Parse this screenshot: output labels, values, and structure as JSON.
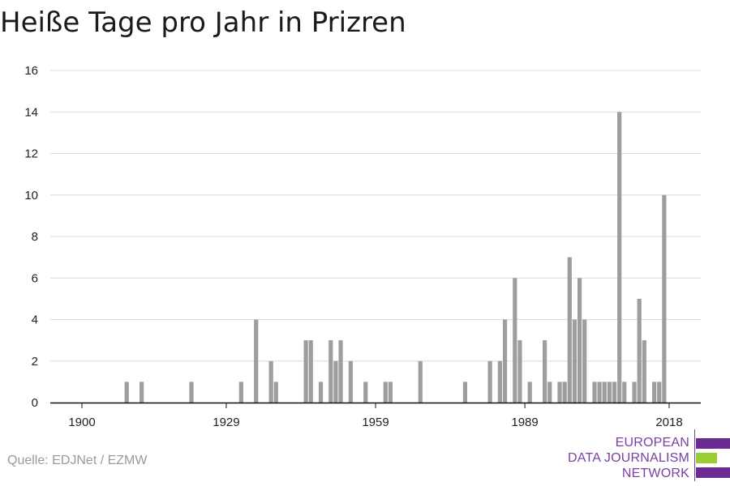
{
  "title": "Heiße Tage pro Jahr in Prizren",
  "source": "Quelle: EDJNet / EZMW",
  "logo": {
    "lines": [
      "EUROPEAN",
      "DATA JOURNALISM",
      "NETWORK"
    ],
    "colors": {
      "text": "#7a3fa3",
      "bar_purple": "#6b2a92",
      "bar_green": "#9acd32"
    }
  },
  "chart_data": {
    "type": "bar",
    "xlabel": "",
    "ylabel": "",
    "ylim": [
      0,
      16
    ],
    "yticks": [
      0,
      2,
      4,
      6,
      8,
      10,
      12,
      14,
      16
    ],
    "xlim": [
      1900,
      2018
    ],
    "xticks": [
      1900,
      1929,
      1959,
      1989,
      2018
    ],
    "grid": true,
    "bar_color": "#9e9e9e",
    "points": [
      {
        "x": 1909,
        "y": 1
      },
      {
        "x": 1912,
        "y": 1
      },
      {
        "x": 1922,
        "y": 1
      },
      {
        "x": 1932,
        "y": 1
      },
      {
        "x": 1935,
        "y": 4
      },
      {
        "x": 1938,
        "y": 2
      },
      {
        "x": 1939,
        "y": 1
      },
      {
        "x": 1945,
        "y": 3
      },
      {
        "x": 1946,
        "y": 3
      },
      {
        "x": 1948,
        "y": 1
      },
      {
        "x": 1950,
        "y": 3
      },
      {
        "x": 1951,
        "y": 2
      },
      {
        "x": 1952,
        "y": 3
      },
      {
        "x": 1954,
        "y": 2
      },
      {
        "x": 1957,
        "y": 1
      },
      {
        "x": 1961,
        "y": 1
      },
      {
        "x": 1962,
        "y": 1
      },
      {
        "x": 1968,
        "y": 2
      },
      {
        "x": 1977,
        "y": 1
      },
      {
        "x": 1982,
        "y": 2
      },
      {
        "x": 1984,
        "y": 2
      },
      {
        "x": 1985,
        "y": 4
      },
      {
        "x": 1987,
        "y": 6
      },
      {
        "x": 1988,
        "y": 3
      },
      {
        "x": 1990,
        "y": 1
      },
      {
        "x": 1993,
        "y": 3
      },
      {
        "x": 1994,
        "y": 1
      },
      {
        "x": 1996,
        "y": 1
      },
      {
        "x": 1997,
        "y": 1
      },
      {
        "x": 1998,
        "y": 7
      },
      {
        "x": 1999,
        "y": 4
      },
      {
        "x": 2000,
        "y": 6
      },
      {
        "x": 2001,
        "y": 4
      },
      {
        "x": 2003,
        "y": 1
      },
      {
        "x": 2004,
        "y": 1
      },
      {
        "x": 2005,
        "y": 1
      },
      {
        "x": 2006,
        "y": 1
      },
      {
        "x": 2007,
        "y": 1
      },
      {
        "x": 2008,
        "y": 14
      },
      {
        "x": 2009,
        "y": 1
      },
      {
        "x": 2011,
        "y": 1
      },
      {
        "x": 2012,
        "y": 5
      },
      {
        "x": 2013,
        "y": 3
      },
      {
        "x": 2015,
        "y": 1
      },
      {
        "x": 2016,
        "y": 1
      },
      {
        "x": 2017,
        "y": 10
      }
    ]
  }
}
